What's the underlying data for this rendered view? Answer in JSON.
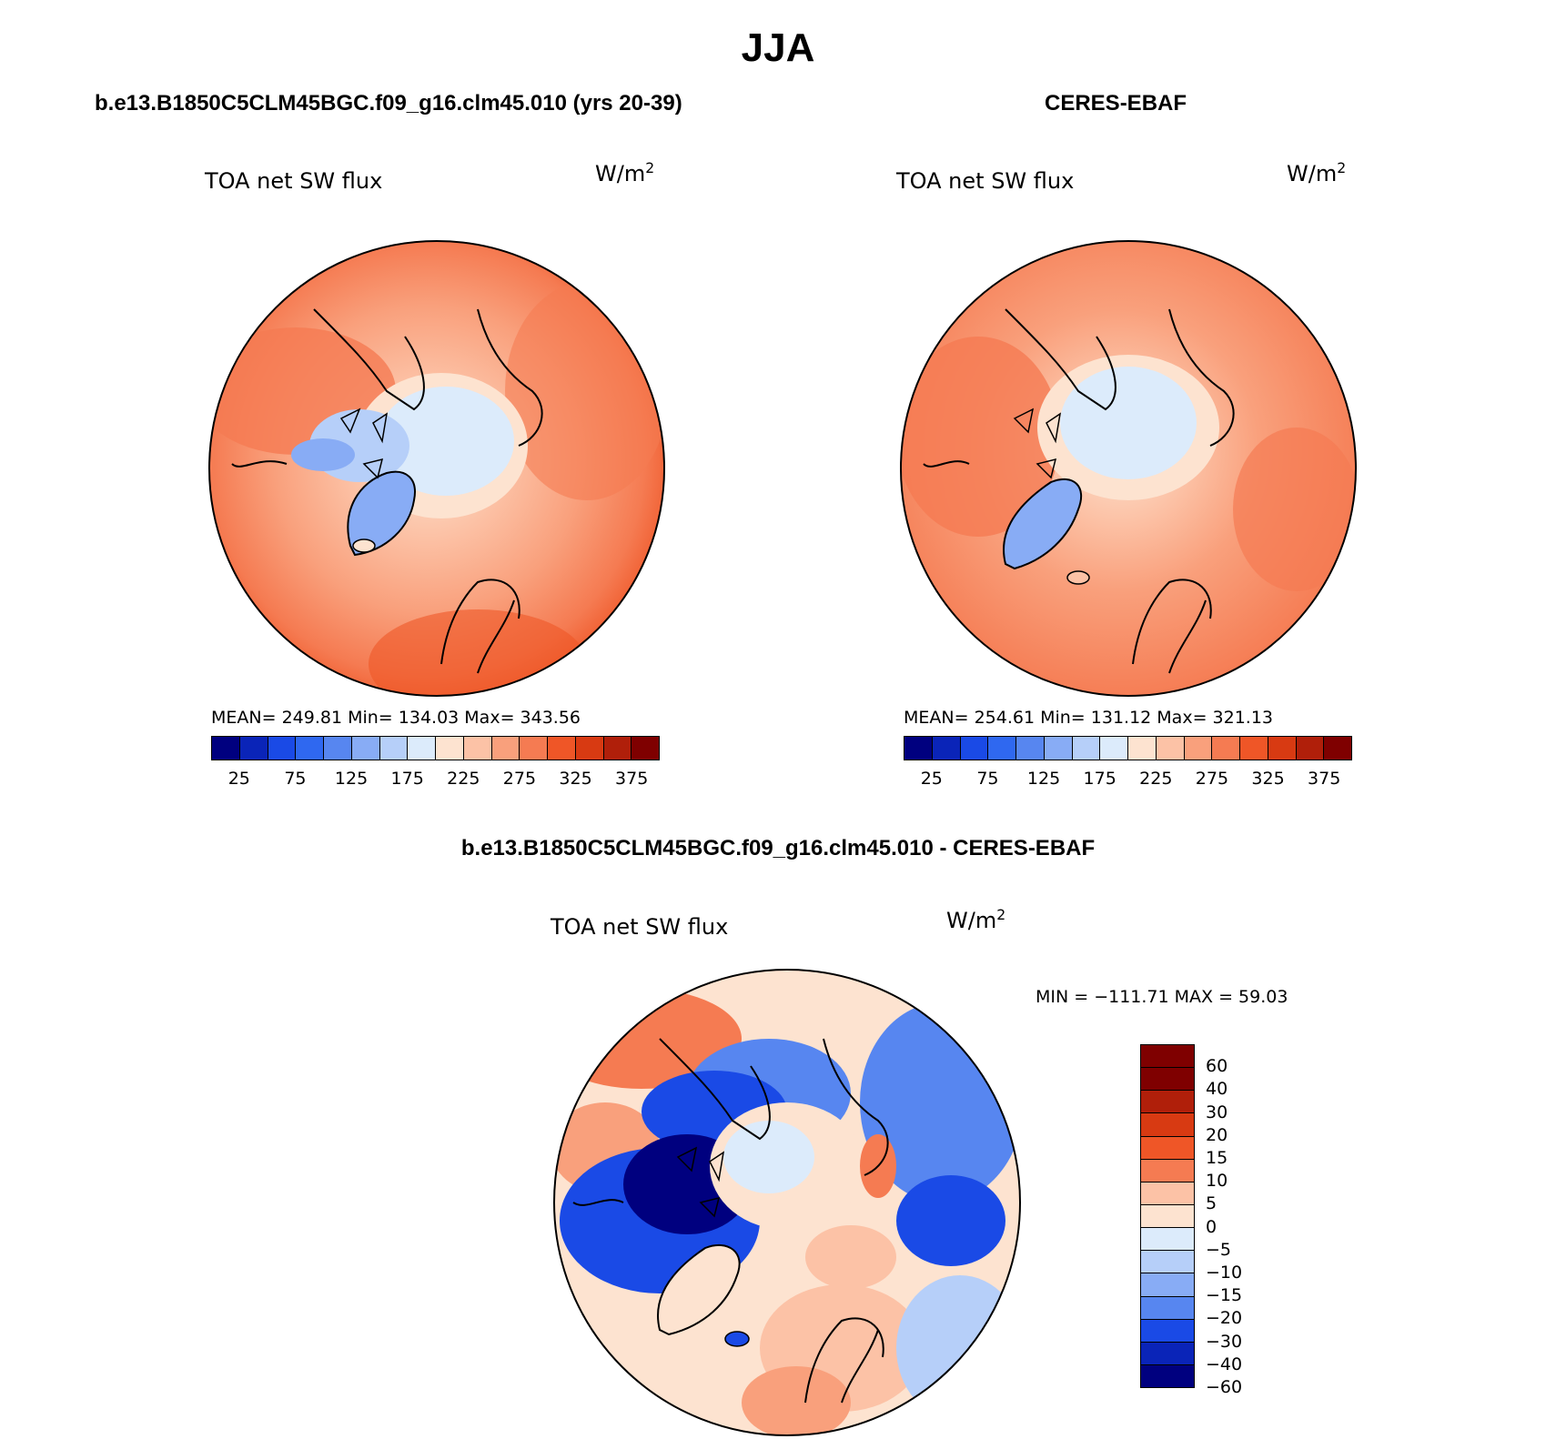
{
  "title": "JJA",
  "panels": {
    "model": {
      "title": "b.e13.B1850C5CLM45BGC.f09_g16.clm45.010 (yrs 20-39)",
      "variable": "TOA net SW flux",
      "units": "W/m",
      "units_sup": "2",
      "stats": "MEAN= 249.81   Min= 134.03   Max= 343.56",
      "colorbar_ticks": [
        "25",
        "75",
        "125",
        "175",
        "225",
        "275",
        "325",
        "375"
      ]
    },
    "obs": {
      "title": "CERES-EBAF",
      "variable": "TOA net SW flux",
      "units": "W/m",
      "units_sup": "2",
      "stats": "MEAN= 254.61   Min= 131.12   Max= 321.13",
      "colorbar_ticks": [
        "25",
        "75",
        "125",
        "175",
        "225",
        "275",
        "325",
        "375"
      ]
    },
    "diff": {
      "title": "b.e13.B1850C5CLM45BGC.f09_g16.clm45.010 - CERES-EBAF",
      "variable": "TOA net SW flux",
      "units": "W/m",
      "units_sup": "2",
      "stats": "MIN = −111.71 MAX =   59.03",
      "colorbar_ticks": [
        "60",
        "40",
        "30",
        "20",
        "15",
        "10",
        "5",
        "0",
        "−5",
        "−10",
        "−15",
        "−20",
        "−30",
        "−40",
        "−60"
      ]
    }
  },
  "colors": {
    "abs_scale": [
      "#00007f",
      "#0a24b8",
      "#1a4ae6",
      "#2f68f0",
      "#5786f0",
      "#88acf5",
      "#b6cff9",
      "#dcebfb",
      "#fde3d0",
      "#fcc2a6",
      "#f9a07c",
      "#f57b52",
      "#ef5627",
      "#d83a12",
      "#b01f0a",
      "#7f0000"
    ],
    "diff_scale": [
      "#7f0000",
      "#b01f0a",
      "#d83a12",
      "#ef5627",
      "#f57b52",
      "#fcc2a6",
      "#fde3d0",
      "#dcebfb",
      "#b6cff9",
      "#88acf5",
      "#5786f0",
      "#1a4ae6",
      "#0a24b8",
      "#00007f"
    ]
  }
}
